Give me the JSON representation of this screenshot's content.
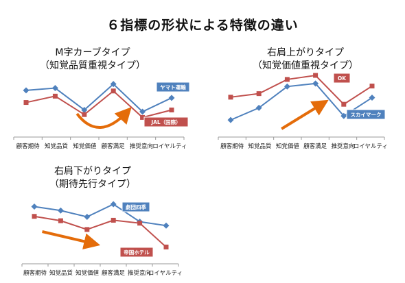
{
  "title": "６指標の形状による特徴の違い",
  "colors": {
    "blue": "#4F81BD",
    "red": "#C0504D",
    "orange": "#E46C0A"
  },
  "chart_data": [
    {
      "type": "line",
      "title_line1": "M字カーブタイプ",
      "title_line2": "（知覚品質重視タイプ）",
      "categories": [
        "顧客期待",
        "知覚品質",
        "知覚価値",
        "顧客満足",
        "推奨意向",
        "ロイヤルティ"
      ],
      "series": [
        {
          "name": "ヤマト運輸",
          "color": "blue",
          "marker": "diamond",
          "values": [
            0.62,
            0.66,
            0.28,
            0.73,
            0.25,
            0.49
          ]
        },
        {
          "name": "JAL（国際）",
          "color": "red",
          "marker": "square",
          "values": [
            0.41,
            0.52,
            0.2,
            0.61,
            0.15,
            0.28
          ]
        }
      ],
      "arrow": "curve-up"
    },
    {
      "type": "line",
      "title_line1": "右肩上がりタイプ",
      "title_line2": "（知覚価値重視タイプ）",
      "categories": [
        "顧客期待",
        "知覚品質",
        "知覚価値",
        "顧客満足",
        "推奨意向",
        "ロイヤルティ"
      ],
      "series": [
        {
          "name": "スカイマーク",
          "color": "blue",
          "marker": "diamond",
          "values": [
            0.12,
            0.36,
            0.78,
            0.84,
            0.2,
            0.56
          ]
        },
        {
          "name": "OK",
          "color": "red",
          "marker": "square",
          "values": [
            0.57,
            0.64,
            0.92,
            1.0,
            0.43,
            0.79
          ]
        }
      ],
      "arrow": "up"
    },
    {
      "type": "line",
      "title_line1": "右肩下がりタイプ",
      "title_line2": "（期待先行タイプ）",
      "categories": [
        "顧客期待",
        "知覚品質",
        "知覚価値",
        "顧客満足",
        "推奨意向",
        "ロイヤルティ"
      ],
      "series": [
        {
          "name": "劇団四季",
          "color": "blue",
          "marker": "diamond",
          "values": [
            0.95,
            0.87,
            0.74,
            1.0,
            0.64,
            0.56
          ]
        },
        {
          "name": "帝国ホテル",
          "color": "red",
          "marker": "square",
          "values": [
            0.75,
            0.66,
            0.48,
            0.67,
            0.61,
            0.12
          ]
        }
      ],
      "arrow": "down"
    }
  ]
}
